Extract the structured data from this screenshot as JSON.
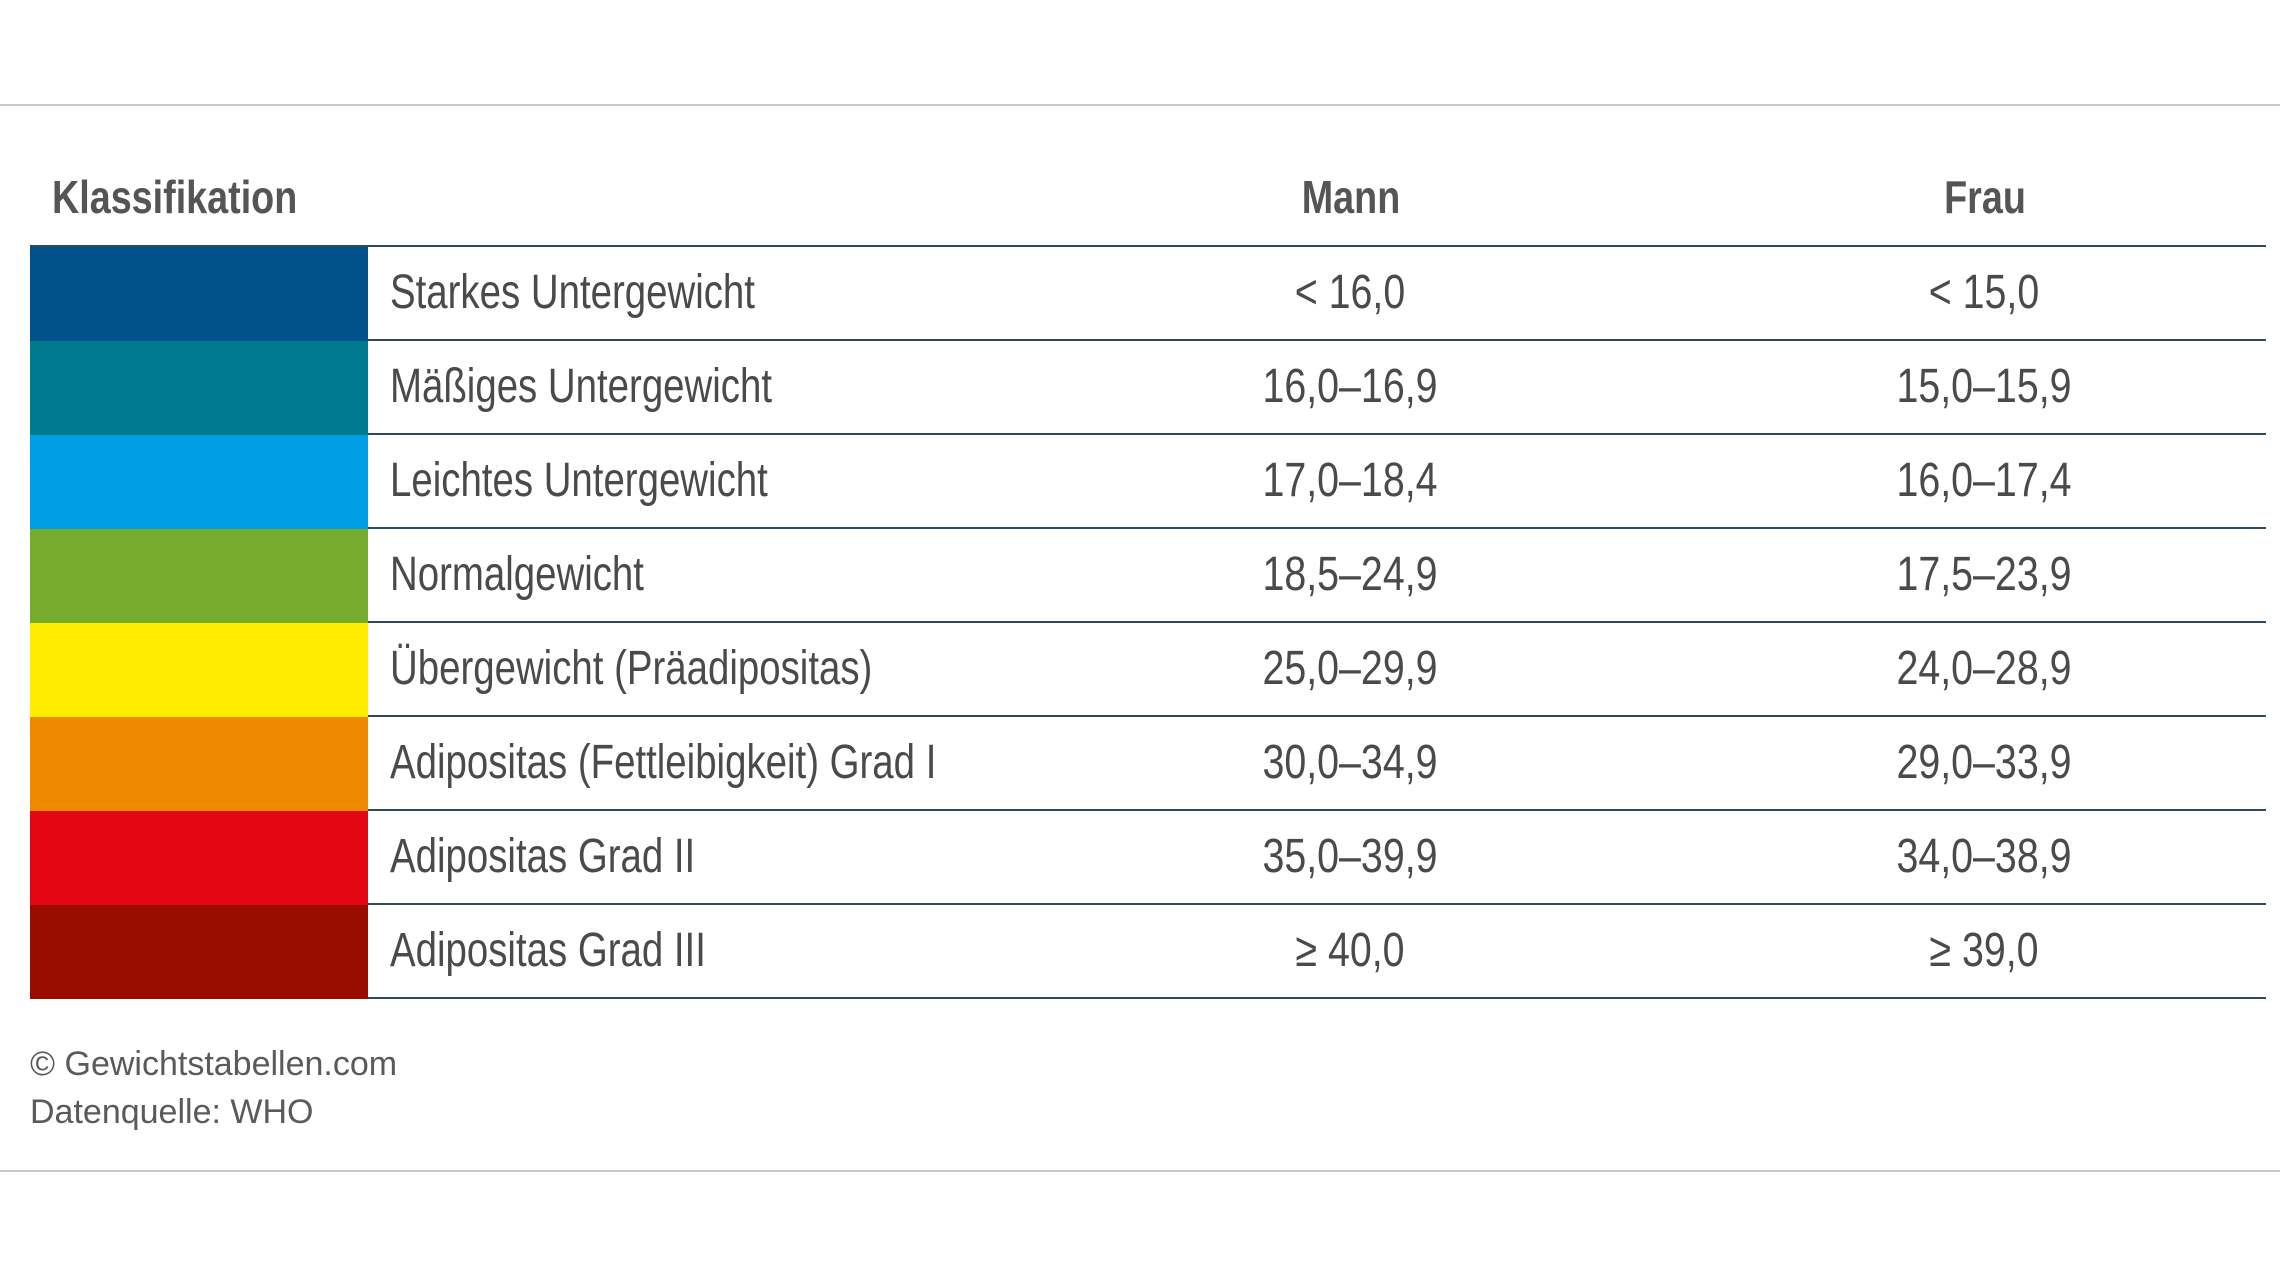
{
  "table": {
    "headers": {
      "classification": "Klassifikation",
      "male": "Mann",
      "female": "Frau"
    },
    "rows": [
      {
        "color": "#00508a",
        "label": "Starkes Untergewicht",
        "male": "< 16,0",
        "female": "< 15,0"
      },
      {
        "color": "#007a8f",
        "label": "Mäßiges Untergewicht",
        "male": "16,0–16,9",
        "female": "15,0–15,9"
      },
      {
        "color": "#009fe3",
        "label": "Leichtes Untergewicht",
        "male": "17,0–18,4",
        "female": "16,0–17,4"
      },
      {
        "color": "#76ac2e",
        "label": "Normalgewicht",
        "male": "18,5–24,9",
        "female": "17,5–23,9"
      },
      {
        "color": "#ffed00",
        "label": "Übergewicht (Präadipositas)",
        "male": "25,0–29,9",
        "female": "24,0–28,9"
      },
      {
        "color": "#ef8a00",
        "label": "Adipositas (Fettleibigkeit) Grad I",
        "male": "30,0–34,9",
        "female": "29,0–33,9"
      },
      {
        "color": "#e30613",
        "label": "Adipositas Grad II",
        "male": "35,0–39,9",
        "female": "34,0–38,9"
      },
      {
        "color": "#990c00",
        "label": "Adipositas Grad III",
        "male": "≥ 40,0",
        "female": "≥ 39,0"
      }
    ]
  },
  "footer": {
    "copyright": "© Gewichtstabellen.com",
    "source": "Datenquelle: WHO"
  }
}
